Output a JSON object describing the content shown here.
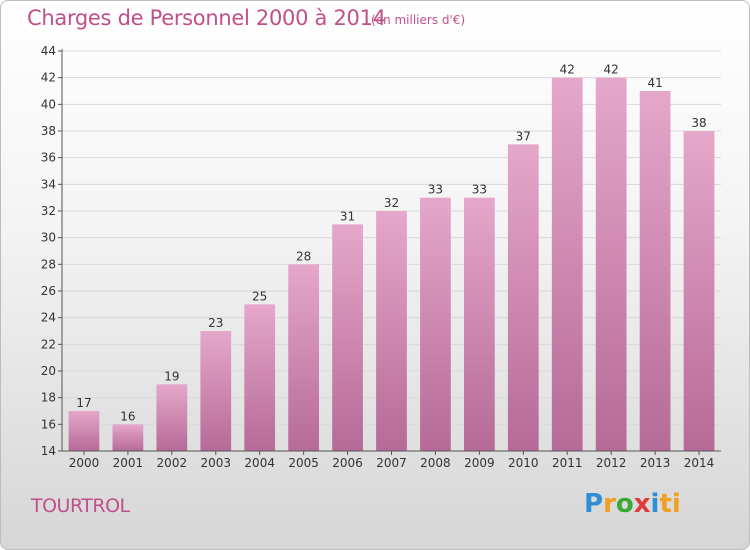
{
  "header": {
    "title": "Charges de Personnel 2000 à 2014",
    "subtitle": "(en milliers d'€)"
  },
  "footer": {
    "place": "TOURTROL",
    "logo": [
      "P",
      "r",
      "o",
      "x",
      "i",
      "ti"
    ]
  },
  "colors": {
    "bar_top": "#e5a7ca",
    "bar_bottom": "#b66a98",
    "text_accent": "#c0508a",
    "grid": "#d9d9d9"
  },
  "chart_data": {
    "type": "bar",
    "categories": [
      "2000",
      "2001",
      "2002",
      "2003",
      "2004",
      "2005",
      "2006",
      "2007",
      "2008",
      "2009",
      "2010",
      "2011",
      "2012",
      "2013",
      "2014"
    ],
    "values": [
      17,
      16,
      19,
      23,
      25,
      28,
      31,
      32,
      33,
      33,
      37,
      42,
      42,
      41,
      38
    ],
    "yticks": [
      "14",
      "16",
      "18",
      "20",
      "22",
      "24",
      "26",
      "28",
      "30",
      "32",
      "34",
      "36",
      "38",
      "40",
      "42",
      "44"
    ],
    "ylim": [
      14,
      44
    ],
    "grid": true
  }
}
